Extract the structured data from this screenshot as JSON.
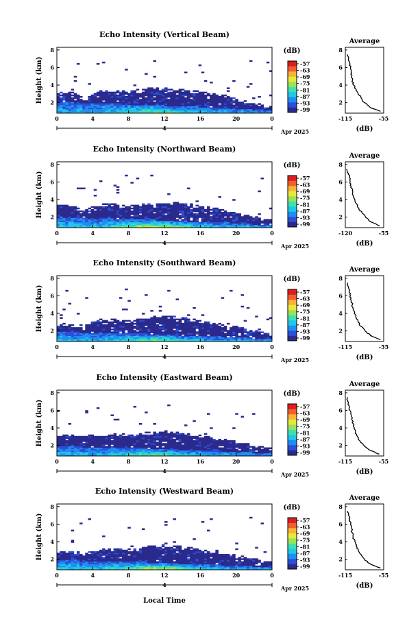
{
  "figure": {
    "shared_xlabel": "Local Time",
    "day_label": "4",
    "month_label": "Apr 2025",
    "avg_title": "Average",
    "avg_xlabel": "(dB)",
    "cbar_label": "(dB)",
    "cbar_ticks": [
      "-57",
      "-63",
      "-69",
      "-75",
      "-81",
      "-87",
      "-93",
      "-99"
    ],
    "colormap": [
      "#2b2a8c",
      "#2b4fd6",
      "#1f8ef0",
      "#22c6e8",
      "#3fe0b0",
      "#9be25a",
      "#e8e83a",
      "#f7b23a",
      "#f0602c",
      "#d92020"
    ]
  },
  "chart_data": [
    {
      "type": "heatmap",
      "title": "Echo Intensity (Vertical Beam)",
      "ylabel": "Height (km)",
      "xlabel": "Local Time",
      "x_ticks": [
        "0",
        "4",
        "8",
        "12",
        "16",
        "20",
        "0"
      ],
      "y_ticks": [
        "2",
        "4",
        "6",
        "8"
      ],
      "xlim_hours": [
        0,
        24
      ],
      "ylim_km": [
        0.8,
        8.3
      ],
      "cloud_top_km": [
        3.2,
        3.3,
        3.2,
        2.5,
        3.0,
        3.4,
        3.5,
        3.4,
        3.3,
        3.5,
        3.6,
        3.7,
        3.7,
        3.6,
        3.5,
        3.4,
        3.3,
        3.2,
        3.0,
        2.8,
        2.5,
        2.2,
        2.0,
        1.8,
        1.6
      ],
      "strong_top_km": [
        2.2,
        2.1,
        2.0,
        1.9,
        1.9,
        2.0,
        2.0,
        1.9,
        1.8,
        1.8,
        1.8,
        1.7,
        1.7,
        1.6,
        1.6,
        1.6,
        1.5,
        1.5,
        1.4,
        1.4,
        1.3,
        1.3,
        1.2,
        1.2,
        1.2
      ],
      "peak_db": -75,
      "colorbar": {
        "min": -99,
        "max": -57,
        "label": "(dB)"
      },
      "average_profile": {
        "title": "Average",
        "xlabel": "(dB)",
        "xlim": [
          -115,
          -55
        ],
        "x_ticks": [
          "-115",
          "-55"
        ],
        "y_ticks": [
          "2",
          "4",
          "6",
          "8"
        ],
        "height_km": [
          7.5,
          7.0,
          6.5,
          6.0,
          5.5,
          5.0,
          4.5,
          4.0,
          3.5,
          3.0,
          2.5,
          2.0,
          1.5,
          1.0
        ],
        "db": [
          -112,
          -110,
          -108,
          -107,
          -106,
          -105,
          -104,
          -102,
          -98,
          -95,
          -90,
          -85,
          -77,
          -60
        ]
      }
    },
    {
      "type": "heatmap",
      "title": "Echo Intensity (Northward Beam)",
      "ylabel": "Height (km)",
      "xlabel": "Local Time",
      "x_ticks": [
        "0",
        "4",
        "8",
        "12",
        "16",
        "20",
        "0"
      ],
      "y_ticks": [
        "2",
        "4",
        "6",
        "8"
      ],
      "xlim_hours": [
        0,
        24
      ],
      "ylim_km": [
        0.8,
        8.3
      ],
      "cloud_top_km": [
        3.4,
        3.5,
        3.3,
        2.7,
        3.2,
        3.5,
        3.6,
        3.4,
        3.3,
        3.4,
        3.6,
        3.7,
        3.8,
        3.7,
        3.6,
        3.5,
        3.3,
        3.2,
        3.0,
        2.8,
        2.6,
        2.3,
        2.1,
        1.9,
        1.7
      ],
      "strong_top_km": [
        2.1,
        2.0,
        1.9,
        1.9,
        1.8,
        1.9,
        1.9,
        1.8,
        1.8,
        1.8,
        1.7,
        1.7,
        1.6,
        1.6,
        1.6,
        1.5,
        1.5,
        1.5,
        1.4,
        1.4,
        1.3,
        1.3,
        1.2,
        1.2,
        1.2
      ],
      "peak_db": -72,
      "colorbar": {
        "min": -99,
        "max": -57,
        "label": "(dB)"
      },
      "average_profile": {
        "title": "Average",
        "xlabel": "(dB)",
        "xlim": [
          -120,
          -55
        ],
        "x_ticks": [
          "-120",
          "-55"
        ],
        "y_ticks": [
          "2",
          "4",
          "6",
          "8"
        ],
        "height_km": [
          7.5,
          7.0,
          6.5,
          6.0,
          5.5,
          5.0,
          4.5,
          4.0,
          3.5,
          3.0,
          2.5,
          2.0,
          1.5,
          1.0
        ],
        "db": [
          -118,
          -115,
          -113,
          -112,
          -110,
          -108,
          -107,
          -104,
          -101,
          -97,
          -92,
          -86,
          -78,
          -62
        ]
      }
    },
    {
      "type": "heatmap",
      "title": "Echo Intensity (Southward Beam)",
      "ylabel": "Height (km)",
      "xlabel": "Local Time",
      "x_ticks": [
        "0",
        "4",
        "8",
        "12",
        "16",
        "20",
        "0"
      ],
      "y_ticks": [
        "2",
        "4",
        "6",
        "8"
      ],
      "xlim_hours": [
        0,
        24
      ],
      "ylim_km": [
        0.8,
        8.3
      ],
      "cloud_top_km": [
        2.9,
        2.9,
        2.7,
        2.5,
        3.2,
        3.4,
        3.4,
        3.3,
        3.2,
        3.4,
        3.6,
        3.7,
        3.8,
        3.7,
        3.6,
        3.4,
        3.2,
        3.0,
        2.9,
        2.8,
        2.6,
        2.3,
        2.1,
        1.9,
        1.7
      ],
      "strong_top_km": [
        2.0,
        1.9,
        1.9,
        1.8,
        1.8,
        1.8,
        1.8,
        1.8,
        1.7,
        1.7,
        1.7,
        1.6,
        1.6,
        1.6,
        1.5,
        1.5,
        1.5,
        1.4,
        1.4,
        1.3,
        1.3,
        1.3,
        1.2,
        1.2,
        1.2
      ],
      "peak_db": -75,
      "colorbar": {
        "min": -99,
        "max": -57,
        "label": "(dB)"
      },
      "average_profile": {
        "title": "Average",
        "xlabel": "(dB)",
        "xlim": [
          -115,
          -55
        ],
        "x_ticks": [
          "-115",
          "-55"
        ],
        "y_ticks": [
          "2",
          "4",
          "6",
          "8"
        ],
        "height_km": [
          7.5,
          7.0,
          6.5,
          6.0,
          5.5,
          5.0,
          4.5,
          4.0,
          3.5,
          3.0,
          2.5,
          2.0,
          1.5,
          1.0
        ],
        "db": [
          -112,
          -110,
          -109,
          -107,
          -106,
          -104,
          -103,
          -101,
          -98,
          -95,
          -90,
          -84,
          -76,
          -60
        ]
      }
    },
    {
      "type": "heatmap",
      "title": "Echo Intensity (Eastward Beam)",
      "ylabel": "Height (km)",
      "xlabel": "Local Time",
      "x_ticks": [
        "0",
        "4",
        "8",
        "12",
        "16",
        "20",
        "0"
      ],
      "y_ticks": [
        "2",
        "4",
        "6",
        "8"
      ],
      "xlim_hours": [
        0,
        24
      ],
      "ylim_km": [
        0.8,
        8.3
      ],
      "cloud_top_km": [
        3.1,
        3.2,
        3.3,
        3.3,
        3.3,
        3.2,
        3.3,
        3.4,
        3.3,
        3.3,
        3.5,
        3.6,
        3.7,
        3.6,
        3.5,
        3.4,
        3.2,
        3.0,
        2.9,
        2.7,
        2.5,
        2.3,
        2.1,
        1.9,
        1.7
      ],
      "strong_top_km": [
        2.0,
        1.9,
        1.9,
        1.8,
        1.8,
        1.8,
        1.8,
        1.7,
        1.7,
        1.7,
        1.7,
        1.6,
        1.6,
        1.6,
        1.5,
        1.5,
        1.5,
        1.4,
        1.4,
        1.3,
        1.3,
        1.3,
        1.2,
        1.2,
        1.2
      ],
      "peak_db": -78,
      "colorbar": {
        "min": -99,
        "max": -57,
        "label": "(dB)"
      },
      "average_profile": {
        "title": "Average",
        "xlabel": "(dB)",
        "xlim": [
          -115,
          -55
        ],
        "x_ticks": [
          "-115",
          "-55"
        ],
        "y_ticks": [
          "2",
          "4",
          "6",
          "8"
        ],
        "height_km": [
          7.5,
          7.0,
          6.5,
          6.0,
          5.5,
          5.0,
          4.5,
          4.0,
          3.5,
          3.0,
          2.5,
          2.0,
          1.5,
          1.0
        ],
        "db": [
          -112,
          -111,
          -109,
          -108,
          -106,
          -105,
          -103,
          -101,
          -99,
          -96,
          -92,
          -86,
          -78,
          -62
        ]
      }
    },
    {
      "type": "heatmap",
      "title": "Echo Intensity (Westward Beam)",
      "ylabel": "Height (km)",
      "xlabel": "Local Time",
      "x_ticks": [
        "0",
        "4",
        "8",
        "12",
        "16",
        "20",
        "0"
      ],
      "y_ticks": [
        "2",
        "4",
        "6",
        "8"
      ],
      "xlim_hours": [
        0,
        24
      ],
      "ylim_km": [
        0.8,
        8.3
      ],
      "cloud_top_km": [
        2.9,
        2.9,
        3.0,
        2.7,
        3.0,
        3.3,
        3.3,
        3.3,
        3.2,
        3.3,
        3.5,
        3.6,
        3.7,
        3.6,
        3.5,
        3.4,
        3.2,
        3.0,
        2.9,
        2.7,
        2.5,
        2.3,
        2.1,
        1.9,
        1.7
      ],
      "strong_top_km": [
        2.0,
        1.9,
        1.9,
        1.8,
        1.8,
        1.8,
        1.8,
        1.7,
        1.7,
        1.7,
        1.7,
        1.6,
        1.6,
        1.6,
        1.5,
        1.5,
        1.5,
        1.4,
        1.4,
        1.3,
        1.3,
        1.3,
        1.2,
        1.2,
        1.2
      ],
      "peak_db": -72,
      "colorbar": {
        "min": -99,
        "max": -57,
        "label": "(dB)"
      },
      "average_profile": {
        "title": "Average",
        "xlabel": "(dB)",
        "xlim": [
          -115,
          -55
        ],
        "x_ticks": [
          "-115",
          "-55"
        ],
        "y_ticks": [
          "2",
          "4",
          "6",
          "8"
        ],
        "height_km": [
          7.5,
          7.0,
          6.5,
          6.0,
          5.5,
          5.0,
          4.5,
          4.0,
          3.5,
          3.0,
          2.5,
          2.0,
          1.5,
          1.0
        ],
        "db": [
          -112,
          -110,
          -108,
          -107,
          -105,
          -104,
          -103,
          -100,
          -98,
          -95,
          -90,
          -85,
          -77,
          -60
        ]
      }
    }
  ]
}
